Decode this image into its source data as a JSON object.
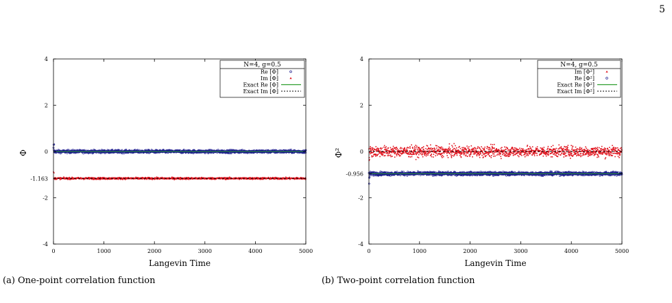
{
  "page": {
    "number": "5"
  },
  "captions": {
    "a": "(a) One-point correlation function",
    "b": "(b) Two-point correlation function"
  },
  "chart_data": [
    {
      "type": "scatter",
      "ylabel": "Φ",
      "xlabel": "Langevin Time",
      "xlim": [
        0,
        5000
      ],
      "ylim": [
        -4,
        4
      ],
      "x_ticks": [
        0,
        1000,
        2000,
        3000,
        4000,
        5000
      ],
      "y_ticks": [
        {
          "value": 4,
          "label": "4"
        },
        {
          "value": 2,
          "label": "2"
        },
        {
          "value": 0,
          "label": "0"
        },
        {
          "value": -1.163,
          "label": "-1.163"
        },
        {
          "value": -2,
          "label": "-2"
        },
        {
          "value": -4,
          "label": "-4"
        }
      ],
      "legend_title": "N=4, g=0.5",
      "legend_placement": "top-right",
      "series": [
        {
          "name": "Re [Φ]",
          "kind": "noisy-open-circles",
          "color": "#1a1a8c",
          "mean": 0.0,
          "spread": 0.06
        },
        {
          "name": "Im [Φ]",
          "kind": "noisy-filled",
          "color": "#e0141e",
          "mean": -1.163,
          "spread": 0.04
        },
        {
          "name": "Exact Re [Φ]",
          "kind": "solid-line",
          "color": "#2e9e2e",
          "value": 0.0
        },
        {
          "name": "Exact Im [Φ]",
          "kind": "dashed-line",
          "color": "#000000",
          "value": -1.163
        }
      ]
    },
    {
      "type": "scatter",
      "ylabel": "Φ²",
      "xlabel": "Langevin Time",
      "xlim": [
        0,
        5000
      ],
      "ylim": [
        -4,
        4
      ],
      "x_ticks": [
        0,
        1000,
        2000,
        3000,
        4000,
        5000
      ],
      "y_ticks": [
        {
          "value": 4,
          "label": "4"
        },
        {
          "value": 2,
          "label": "2"
        },
        {
          "value": 0,
          "label": "0"
        },
        {
          "value": -0.956,
          "label": "-0.956"
        },
        {
          "value": -2,
          "label": "-2"
        },
        {
          "value": -4,
          "label": "-4"
        }
      ],
      "legend_title": "N=4, g=0.5",
      "legend_placement": "top-right",
      "series": [
        {
          "name": "Im [Φ²]",
          "kind": "noisy-filled",
          "color": "#e0141e",
          "mean": 0.0,
          "spread": 0.22
        },
        {
          "name": "Re [Φ²]",
          "kind": "noisy-open-circles",
          "color": "#1a1a8c",
          "mean": -0.956,
          "spread": 0.07
        },
        {
          "name": "Exact Re [Φ²]",
          "kind": "solid-line",
          "color": "#2e9e2e",
          "value": -0.956
        },
        {
          "name": "Exact Im [Φ²]",
          "kind": "dashed-line",
          "color": "#000000",
          "value": 0.0
        }
      ]
    }
  ]
}
